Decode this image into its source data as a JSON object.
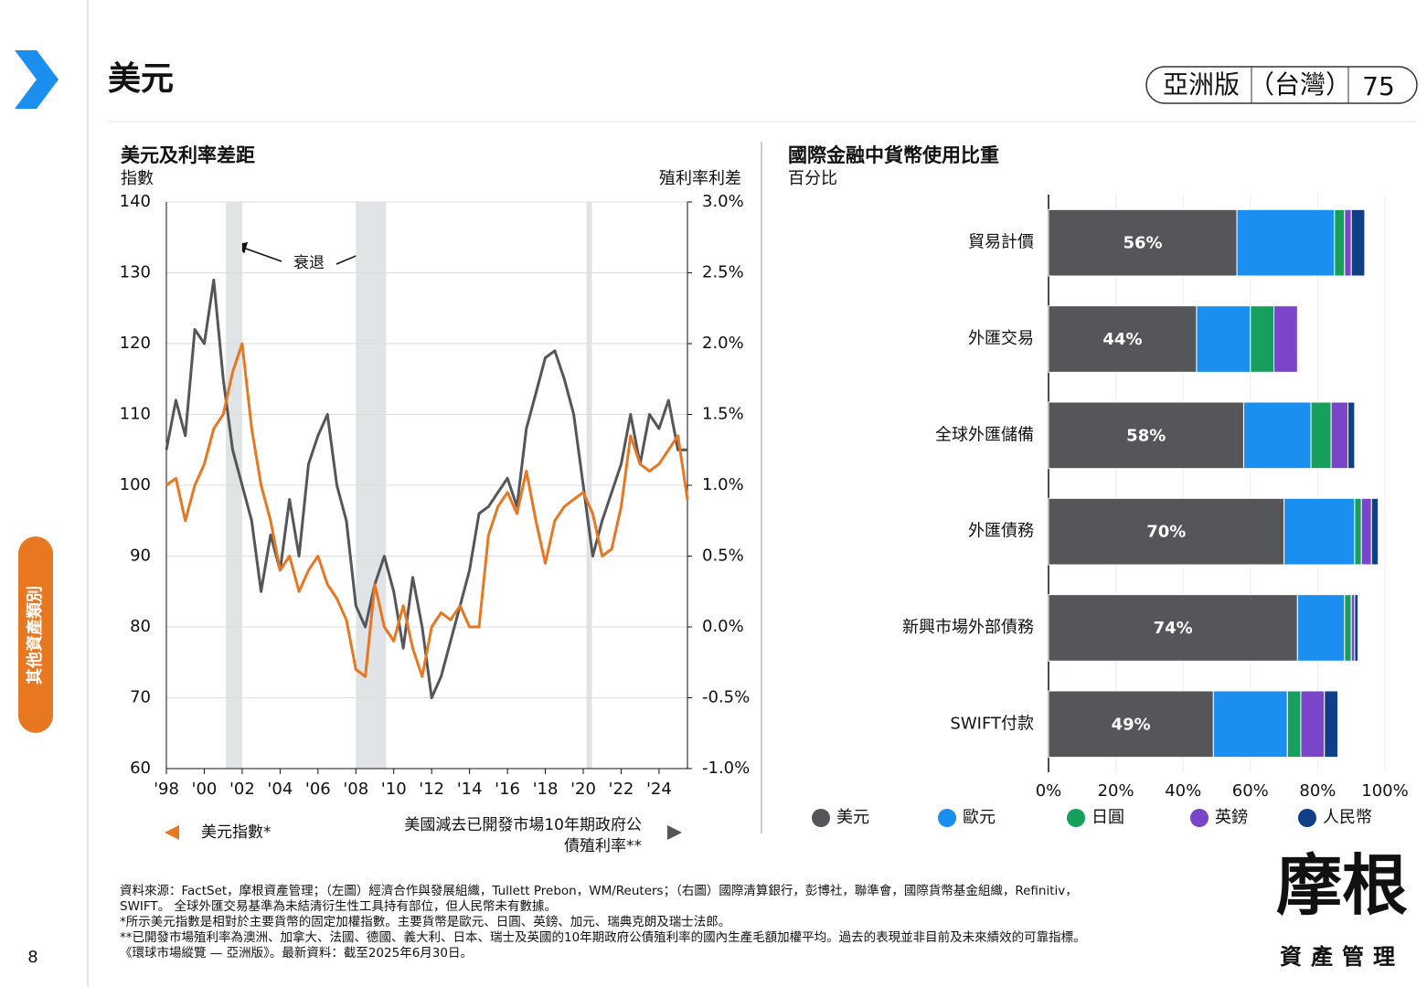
{
  "header": {
    "title": "美元",
    "edition": "亞洲版",
    "region": "（台灣）",
    "page_code": "75"
  },
  "side_tab": "其他資產類別",
  "page_number": "8",
  "footnotes": [
    "資料來源：FactSet，摩根資產管理；（左圖）經濟合作與發展組織，Tullett Prebon，WM/Reuters；（右圖）國際清算銀行，彭博社，聯準會，國際貨幣基金組織，Refinitiv，",
    "SWIFT。 全球外匯交易基準為未結清衍生性工具持有部位，但人民幣未有數據。",
    "*所示美元指數是相對於主要貨幣的固定加權指數。主要貨幣是歐元、日圓、英鎊、加元、瑞典克朗及瑞士法郎。",
    "**已開發市場殖利率為澳洲、加拿大、法國、德國、義大利、日本、瑞士及英國的10年期政府公債殖利率的國內生產毛額加權平均。過去的表現並非目前及未來績效的可靠指標。",
    "《環球市場縱覽 — 亞洲版》。最新資料：截至2025年6月30日。"
  ],
  "logo": {
    "name": "摩根",
    "sub": "資產管理"
  },
  "chart_data": [
    {
      "type": "line",
      "title": "美元及利率差距",
      "y_label": "指數",
      "y2_label": "殖利率利差",
      "annotation": "衰退",
      "recessions": [
        [
          2001.14,
          2002.0
        ],
        [
          2008.0,
          2009.6
        ],
        [
          2020.17,
          2020.46
        ]
      ],
      "x": [
        1998,
        1998.5,
        1999,
        1999.5,
        2000,
        2000.5,
        2001,
        2001.5,
        2002,
        2002.5,
        2003,
        2003.5,
        2004,
        2004.5,
        2005,
        2005.5,
        2006,
        2006.5,
        2007,
        2007.5,
        2008,
        2008.5,
        2009,
        2009.5,
        2010,
        2010.5,
        2011,
        2011.5,
        2012,
        2012.5,
        2013,
        2013.5,
        2014,
        2014.5,
        2015,
        2015.5,
        2016,
        2016.5,
        2017,
        2017.5,
        2018,
        2018.5,
        2019,
        2019.5,
        2020,
        2020.5,
        2021,
        2021.5,
        2022,
        2022.5,
        2023,
        2023.5,
        2024,
        2024.5,
        2025,
        2025.5
      ],
      "series": [
        {
          "name": "美元指數*",
          "color": "#e87722",
          "values": [
            100,
            101,
            95,
            100,
            103,
            108,
            110,
            116,
            120,
            108,
            100,
            95,
            88,
            90,
            85,
            88,
            90,
            86,
            84,
            81,
            74,
            73,
            86,
            80,
            78,
            83,
            77,
            73,
            80,
            82,
            81,
            83,
            80,
            80,
            93,
            97,
            99,
            96,
            102,
            95,
            89,
            95,
            97,
            98,
            99,
            96,
            90,
            91,
            97,
            107,
            103,
            102,
            103,
            105,
            107,
            98
          ]
        },
        {
          "name": "美國減去已開發市場10年期政府公債殖利率**",
          "color": "#54565a",
          "axis": "y2",
          "values": [
            1.25,
            1.6,
            1.35,
            2.1,
            2.0,
            2.45,
            1.75,
            1.25,
            1.0,
            0.75,
            0.25,
            0.65,
            0.4,
            0.9,
            0.5,
            1.15,
            1.35,
            1.5,
            1.0,
            0.75,
            0.15,
            0.0,
            0.3,
            0.5,
            0.25,
            -0.15,
            0.35,
            0.0,
            -0.5,
            -0.35,
            -0.1,
            0.15,
            0.4,
            0.8,
            0.85,
            0.95,
            1.05,
            0.85,
            1.4,
            1.65,
            1.9,
            1.95,
            1.75,
            1.5,
            1.0,
            0.5,
            0.75,
            0.95,
            1.15,
            1.5,
            1.15,
            1.5,
            1.4,
            1.6,
            1.25,
            1.25
          ]
        }
      ],
      "xlim": [
        1998,
        2025.5
      ],
      "xticks": [
        {
          "value": 1998,
          "label": "'98"
        },
        {
          "value": 2000,
          "label": "'00"
        },
        {
          "value": 2002,
          "label": "'02"
        },
        {
          "value": 2004,
          "label": "'04"
        },
        {
          "value": 2006,
          "label": "'06"
        },
        {
          "value": 2008,
          "label": "'08"
        },
        {
          "value": 2010,
          "label": "'10"
        },
        {
          "value": 2012,
          "label": "'12"
        },
        {
          "value": 2014,
          "label": "'14"
        },
        {
          "value": 2016,
          "label": "'16"
        },
        {
          "value": 2018,
          "label": "'18"
        },
        {
          "value": 2020,
          "label": "'20"
        },
        {
          "value": 2022,
          "label": "'22"
        },
        {
          "value": 2024,
          "label": "'24"
        }
      ],
      "ylim": [
        60,
        140
      ],
      "yticks": [
        60,
        70,
        80,
        90,
        100,
        110,
        120,
        130,
        140
      ],
      "y2lim": [
        -1,
        3
      ],
      "y2ticks": [
        {
          "value": -1,
          "label": "-1.0%"
        },
        {
          "value": -0.5,
          "label": "-0.5%"
        },
        {
          "value": 0,
          "label": "0.0%"
        },
        {
          "value": 0.5,
          "label": "0.5%"
        },
        {
          "value": 1,
          "label": "1.0%"
        },
        {
          "value": 1.5,
          "label": "1.5%"
        },
        {
          "value": 2,
          "label": "2.0%"
        },
        {
          "value": 2.5,
          "label": "2.5%"
        },
        {
          "value": 3,
          "label": "3.0%"
        }
      ],
      "grid": true
    },
    {
      "type": "stacked_barh",
      "title": "國際金融中貨幣使用比重",
      "subtitle": "百分比",
      "categories": [
        "貿易計價",
        "外匯交易",
        "全球外匯儲備",
        "外匯債務",
        "新興市場外部債務",
        "SWIFT付款"
      ],
      "series": [
        {
          "name": "美元",
          "color": "#54565a",
          "values": [
            56,
            44,
            58,
            70,
            74,
            49
          ],
          "value_labels": [
            "56%",
            "44%",
            "58%",
            "70%",
            "74%",
            "49%"
          ]
        },
        {
          "name": "歐元",
          "color": "#1a8ff0",
          "values": [
            29,
            16,
            20,
            21,
            14,
            22
          ]
        },
        {
          "name": "日圓",
          "color": "#17a05d",
          "values": [
            3,
            7,
            6,
            2,
            2,
            4
          ]
        },
        {
          "name": "英鎊",
          "color": "#7b45c9",
          "values": [
            2,
            7,
            5,
            3,
            1,
            7
          ]
        },
        {
          "name": "人民幣",
          "color": "#0e3f88",
          "values": [
            4,
            0,
            2,
            2,
            1,
            4
          ]
        }
      ],
      "xlim": [
        0,
        100
      ],
      "xticks": [
        {
          "value": 0,
          "label": "0%"
        },
        {
          "value": 20,
          "label": "20%"
        },
        {
          "value": 40,
          "label": "40%"
        },
        {
          "value": 60,
          "label": "60%"
        },
        {
          "value": 80,
          "label": "80%"
        },
        {
          "value": 100,
          "label": "100%"
        }
      ],
      "grid": true
    }
  ]
}
